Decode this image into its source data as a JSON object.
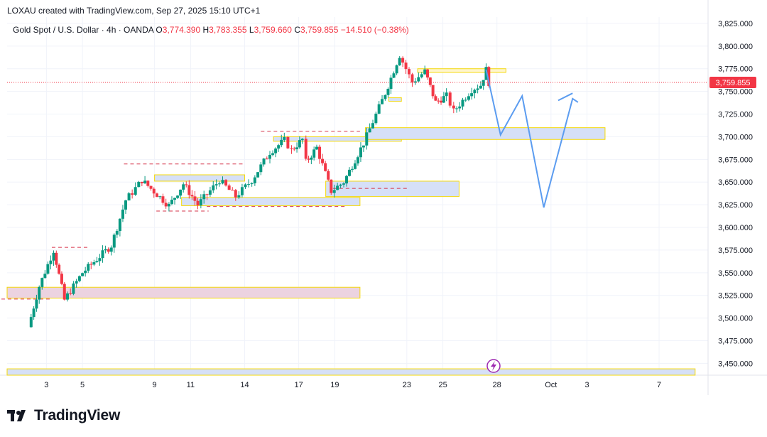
{
  "attribution": "LOXAU created with TradingView.com, Sep 27, 2025 15:10 UTC+1",
  "legend": {
    "symbol": "Gold Spot / U.S. Dollar · 4h · OANDA",
    "open_label": "O",
    "open": "3,774.390",
    "high_label": "H",
    "high": "3,783.355",
    "low_label": "L",
    "low": "3,759.660",
    "close_label": "C",
    "close": "3,759.855",
    "change": "−14.510 (−0.38%)"
  },
  "brand": "TradingView",
  "colors": {
    "up": "#089981",
    "down": "#f23645",
    "projection": "#5b9cf0",
    "zone_blue": "#d6e0f7",
    "zone_pink": "#ecd3e0",
    "zone_border": "#f5d90a",
    "price_line": "#f23645",
    "grid": "#f0f3fa",
    "axis_text": "#131722"
  },
  "chart_data": {
    "type": "candlestick",
    "interval": "4h",
    "ylim": [
      3437,
      3832
    ],
    "y_ticks": [
      "3,825.000",
      "3,800.000",
      "3,775.000",
      "3,750.000",
      "3,725.000",
      "3,700.000",
      "3,675.000",
      "3,650.000",
      "3,625.000",
      "3,600.000",
      "3,575.000",
      "3,550.000",
      "3,525.000",
      "3,500.000",
      "3,475.000",
      "3,450.000"
    ],
    "x_tick_labels": [
      {
        "label": "3",
        "day": 3
      },
      {
        "label": "5",
        "day": 5
      },
      {
        "label": "9",
        "day": 9
      },
      {
        "label": "11",
        "day": 11
      },
      {
        "label": "14",
        "day": 14
      },
      {
        "label": "17",
        "day": 17
      },
      {
        "label": "19",
        "day": 19
      },
      {
        "label": "23",
        "day": 23
      },
      {
        "label": "25",
        "day": 25
      },
      {
        "label": "28",
        "day": 28
      },
      {
        "label": "Oct",
        "day": 31
      },
      {
        "label": "3",
        "day": 33
      },
      {
        "label": "7",
        "day": 37
      }
    ],
    "last_price": 3759.855,
    "last_price_label": "3,759.855",
    "pivots": [
      {
        "day": 2.0,
        "price": 3490
      },
      {
        "day": 2.6,
        "price": 3535
      },
      {
        "day": 3.4,
        "price": 3575
      },
      {
        "day": 4.0,
        "price": 3520
      },
      {
        "day": 5.0,
        "price": 3550
      },
      {
        "day": 6.6,
        "price": 3580
      },
      {
        "day": 7.4,
        "price": 3630
      },
      {
        "day": 8.3,
        "price": 3652
      },
      {
        "day": 9.8,
        "price": 3624
      },
      {
        "day": 10.6,
        "price": 3648
      },
      {
        "day": 11.4,
        "price": 3625
      },
      {
        "day": 12.6,
        "price": 3652
      },
      {
        "day": 13.5,
        "price": 3634
      },
      {
        "day": 14.4,
        "price": 3652
      },
      {
        "day": 15.4,
        "price": 3683
      },
      {
        "day": 16.2,
        "price": 3696
      },
      {
        "day": 16.6,
        "price": 3685
      },
      {
        "day": 17.2,
        "price": 3697
      },
      {
        "day": 17.4,
        "price": 3672
      },
      {
        "day": 18.0,
        "price": 3688
      },
      {
        "day": 18.8,
        "price": 3640
      },
      {
        "day": 19.5,
        "price": 3650
      },
      {
        "day": 20.6,
        "price": 3693
      },
      {
        "day": 21.8,
        "price": 3748
      },
      {
        "day": 22.6,
        "price": 3790
      },
      {
        "day": 23.3,
        "price": 3760
      },
      {
        "day": 24.0,
        "price": 3772
      },
      {
        "day": 24.6,
        "price": 3738
      },
      {
        "day": 25.2,
        "price": 3745
      },
      {
        "day": 25.6,
        "price": 3728
      },
      {
        "day": 26.6,
        "price": 3752
      },
      {
        "day": 27.1,
        "price": 3757
      },
      {
        "day": 27.4,
        "price": 3774
      },
      {
        "day": 27.55,
        "price": 3759.855
      }
    ],
    "zones": [
      {
        "kind": "demand",
        "day_from": 0.0,
        "day_to": 20.4,
        "low": 3522,
        "high": 3534
      },
      {
        "kind": "demand",
        "day_from": 9.0,
        "day_to": 14.0,
        "low": 3651,
        "high": 3658
      },
      {
        "kind": "demand",
        "day_from": 10.5,
        "day_to": 20.4,
        "low": 3624,
        "high": 3633
      },
      {
        "kind": "demand",
        "day_from": 18.5,
        "day_to": 25.9,
        "low": 3634,
        "high": 3651
      },
      {
        "kind": "demand",
        "day_from": 15.6,
        "day_to": 22.7,
        "low": 3695,
        "high": 3700
      },
      {
        "kind": "demand",
        "day_from": 20.7,
        "day_to": 34.0,
        "low": 3697,
        "high": 3710
      },
      {
        "kind": "demand",
        "day_from": 22.0,
        "day_to": 22.7,
        "low": 3739,
        "high": 3743
      },
      {
        "kind": "supply",
        "day_from": 23.6,
        "day_to": 28.5,
        "low": 3771,
        "high": 3775
      },
      {
        "kind": "demand",
        "day_from": 0.0,
        "day_to": 39.0,
        "low": 3437,
        "high": 3444
      }
    ],
    "dashed_levels": [
      {
        "day_from": 0.5,
        "day_to": 3.3,
        "price": 3521
      },
      {
        "day_from": 3.3,
        "day_to": 5.4,
        "price": 3578
      },
      {
        "day_from": 7.3,
        "day_to": 14.0,
        "price": 3670
      },
      {
        "day_from": 9.1,
        "day_to": 12.0,
        "price": 3618
      },
      {
        "day_from": 11.9,
        "day_to": 19.7,
        "price": 3623
      },
      {
        "day_from": 14.9,
        "day_to": 20.4,
        "price": 3706
      },
      {
        "day_from": 18.9,
        "day_to": 23.1,
        "price": 3643
      }
    ],
    "projection_path": [
      {
        "day": 27.4,
        "price": 3774
      },
      {
        "day": 28.2,
        "price": 3702
      },
      {
        "day": 29.4,
        "price": 3745
      },
      {
        "day": 30.6,
        "price": 3622
      },
      {
        "day": 32.2,
        "price": 3742
      },
      {
        "day": 32.5,
        "price": 3738
      }
    ],
    "projection_arrow": {
      "from_day": 31.4,
      "from_price": 3740,
      "to_day": 32.2,
      "to_price": 3748
    }
  }
}
